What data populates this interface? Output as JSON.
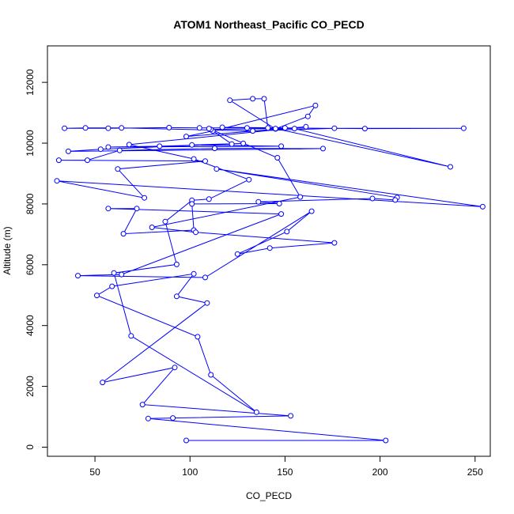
{
  "chart_data": {
    "type": "line",
    "title": "ATOM1 Northeast_Pacific CO_PECD",
    "xlabel": "CO_PECD",
    "ylabel": "Altitude (m)",
    "xlim": [
      25,
      258
    ],
    "ylim": [
      -300,
      13200
    ],
    "x_ticks": [
      50,
      100,
      150,
      200,
      250
    ],
    "y_ticks": [
      0,
      2000,
      4000,
      6000,
      8000,
      10000,
      12000
    ],
    "x_tick_labels": [
      "50",
      "100",
      "150",
      "200",
      "250"
    ],
    "y_tick_labels": [
      "0",
      "2000",
      "4000",
      "6000",
      "8000",
      "10000",
      "12000"
    ],
    "grid": false,
    "legend": "none",
    "series_color": "#0000ff",
    "marker": "open-circle",
    "points": [
      {
        "x": 98,
        "y": 220
      },
      {
        "x": 203,
        "y": 220
      },
      {
        "x": 78,
        "y": 940
      },
      {
        "x": 91,
        "y": 960
      },
      {
        "x": 153,
        "y": 1030
      },
      {
        "x": 75,
        "y": 1400
      },
      {
        "x": 92,
        "y": 2620
      },
      {
        "x": 54,
        "y": 2130
      },
      {
        "x": 109,
        "y": 4740
      },
      {
        "x": 93,
        "y": 4960
      },
      {
        "x": 102,
        "y": 5700
      },
      {
        "x": 59,
        "y": 5290
      },
      {
        "x": 51,
        "y": 4990
      },
      {
        "x": 104,
        "y": 3630
      },
      {
        "x": 111,
        "y": 2380
      },
      {
        "x": 135,
        "y": 1150
      },
      {
        "x": 69,
        "y": 3660
      },
      {
        "x": 60,
        "y": 5730
      },
      {
        "x": 93,
        "y": 6010
      },
      {
        "x": 87,
        "y": 7420
      },
      {
        "x": 101,
        "y": 8120
      },
      {
        "x": 110,
        "y": 8160
      },
      {
        "x": 131,
        "y": 8800
      },
      {
        "x": 102,
        "y": 9480
      },
      {
        "x": 68,
        "y": 9950
      },
      {
        "x": 161,
        "y": 10540
      },
      {
        "x": 98,
        "y": 10220
      },
      {
        "x": 112,
        "y": 10400
      },
      {
        "x": 166,
        "y": 11240
      },
      {
        "x": 162,
        "y": 10880
      },
      {
        "x": 145,
        "y": 10470
      },
      {
        "x": 121,
        "y": 11410
      },
      {
        "x": 133,
        "y": 11460
      },
      {
        "x": 139,
        "y": 11460
      },
      {
        "x": 141,
        "y": 10500
      },
      {
        "x": 105,
        "y": 10500
      },
      {
        "x": 89,
        "y": 10510
      },
      {
        "x": 57,
        "y": 10490
      },
      {
        "x": 34,
        "y": 10490
      },
      {
        "x": 45,
        "y": 10500
      },
      {
        "x": 64,
        "y": 10500
      },
      {
        "x": 133,
        "y": 10400
      },
      {
        "x": 176,
        "y": 10490
      },
      {
        "x": 244,
        "y": 10490
      },
      {
        "x": 192,
        "y": 10480
      },
      {
        "x": 150,
        "y": 10500
      },
      {
        "x": 117,
        "y": 10520
      },
      {
        "x": 130,
        "y": 10500
      },
      {
        "x": 155,
        "y": 10480
      },
      {
        "x": 237,
        "y": 9220
      },
      {
        "x": 145,
        "y": 10480
      },
      {
        "x": 111,
        "y": 10450
      },
      {
        "x": 122,
        "y": 9970
      },
      {
        "x": 84,
        "y": 9900
      },
      {
        "x": 57,
        "y": 9870
      },
      {
        "x": 148,
        "y": 9900
      },
      {
        "x": 101,
        "y": 9940
      },
      {
        "x": 128,
        "y": 9990
      },
      {
        "x": 53,
        "y": 9800
      },
      {
        "x": 36,
        "y": 9730
      },
      {
        "x": 170,
        "y": 9820
      },
      {
        "x": 113,
        "y": 9830
      },
      {
        "x": 63,
        "y": 9760
      },
      {
        "x": 46,
        "y": 9440
      },
      {
        "x": 31,
        "y": 9440
      },
      {
        "x": 108,
        "y": 9410
      },
      {
        "x": 62,
        "y": 9150
      },
      {
        "x": 76,
        "y": 8200
      },
      {
        "x": 30,
        "y": 8760
      },
      {
        "x": 254,
        "y": 7910
      },
      {
        "x": 114,
        "y": 9150
      },
      {
        "x": 209,
        "y": 8210
      },
      {
        "x": 208,
        "y": 8130
      },
      {
        "x": 196,
        "y": 8180
      },
      {
        "x": 136,
        "y": 8070
      },
      {
        "x": 147,
        "y": 8010
      },
      {
        "x": 101,
        "y": 8000
      },
      {
        "x": 102,
        "y": 7140
      },
      {
        "x": 65,
        "y": 7020
      },
      {
        "x": 72,
        "y": 7850
      },
      {
        "x": 57,
        "y": 7850
      },
      {
        "x": 148,
        "y": 7670
      },
      {
        "x": 64,
        "y": 5680
      },
      {
        "x": 41,
        "y": 5640
      },
      {
        "x": 108,
        "y": 5580
      },
      {
        "x": 164,
        "y": 7760
      },
      {
        "x": 151,
        "y": 7090
      },
      {
        "x": 125,
        "y": 6350
      },
      {
        "x": 142,
        "y": 6550
      },
      {
        "x": 176,
        "y": 6720
      },
      {
        "x": 103,
        "y": 7070
      },
      {
        "x": 80,
        "y": 7230
      },
      {
        "x": 158,
        "y": 8230
      },
      {
        "x": 146,
        "y": 9520
      },
      {
        "x": 110,
        "y": 10480
      }
    ]
  }
}
